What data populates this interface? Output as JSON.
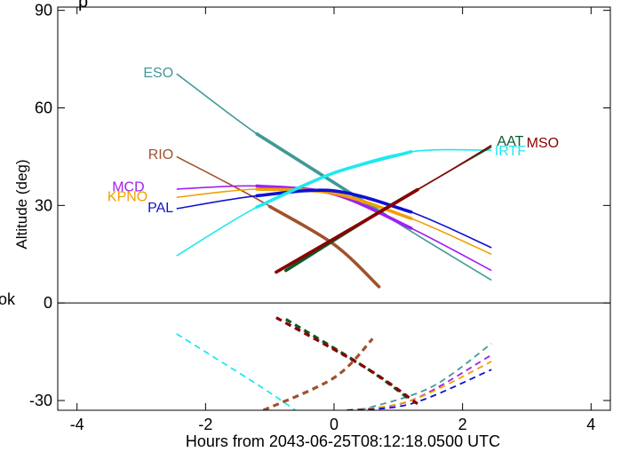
{
  "chart_data": {
    "type": "line",
    "title": "p",
    "xlabel": "Hours from 2043-06-25T08:12:18.0500 UTC",
    "ylabel": "Altitude (deg)",
    "xlim": [
      -4.3,
      4.3
    ],
    "ylim": [
      -33,
      91
    ],
    "x_ticks": [
      -4,
      -2,
      0,
      2,
      4
    ],
    "y_ticks": [
      -30,
      0,
      30,
      60,
      90
    ],
    "x_tick_labels": [
      "-4",
      "-2",
      "0",
      "2",
      "4"
    ],
    "y_tick_labels": [
      "-30",
      "0",
      "30",
      "60",
      "90"
    ],
    "side_text": "ok",
    "series": [
      {
        "name": "ESO",
        "color": "#3f9a96",
        "points": [
          [
            -2.45,
            70.5
          ],
          [
            -1.2,
            52
          ],
          [
            0,
            37
          ],
          [
            1.2,
            22
          ],
          [
            2.45,
            7
          ]
        ],
        "thick": [
          -1.2,
          0.8
        ],
        "below": [
          [
            0.4,
            -33
          ],
          [
            1.5,
            -26
          ],
          [
            2.45,
            -12.5
          ]
        ]
      },
      {
        "name": "RIO",
        "color": "#a0522d",
        "points": [
          [
            -2.45,
            45
          ],
          [
            -1.2,
            32
          ],
          [
            0,
            18
          ],
          [
            0.7,
            5
          ]
        ],
        "thick": [
          -1.0,
          0.7
        ],
        "below": [
          [
            -1.1,
            -33
          ],
          [
            0,
            -23
          ],
          [
            0.6,
            -11
          ]
        ]
      },
      {
        "name": "MCD",
        "color": "#a020f0",
        "points": [
          [
            -2.45,
            35
          ],
          [
            -1.2,
            36
          ],
          [
            0,
            33.5
          ],
          [
            1.2,
            23
          ],
          [
            2.45,
            10
          ]
        ],
        "thick": [
          -1.2,
          1.2
        ],
        "below": [
          [
            0.2,
            -33
          ],
          [
            1.2,
            -30
          ],
          [
            2.45,
            -16
          ]
        ]
      },
      {
        "name": "KPNO",
        "color": "#f0a000",
        "points": [
          [
            -2.45,
            32.5
          ],
          [
            -1.2,
            35
          ],
          [
            0,
            33.7
          ],
          [
            1.2,
            26
          ],
          [
            2.45,
            15
          ]
        ],
        "thick": [
          -1.2,
          1.2
        ],
        "below": [
          [
            0.2,
            -33
          ],
          [
            1.2,
            -30
          ],
          [
            2.45,
            -18
          ]
        ]
      },
      {
        "name": "PAL",
        "color": "#1010d0",
        "points": [
          [
            -2.45,
            29
          ],
          [
            -1.2,
            33
          ],
          [
            0,
            34.5
          ],
          [
            1.2,
            28
          ],
          [
            2.45,
            17
          ]
        ],
        "thick": [
          -1.2,
          1.2
        ],
        "below": [
          [
            0.2,
            -33
          ],
          [
            1.2,
            -31
          ],
          [
            2.45,
            -20.5
          ]
        ]
      },
      {
        "name": "IRTF",
        "color": "#20e8f0",
        "points": [
          [
            -2.45,
            14.5
          ],
          [
            -1.2,
            29.5
          ],
          [
            0,
            40
          ],
          [
            1.2,
            46.5
          ],
          [
            2.45,
            47
          ]
        ],
        "thick": [
          -1.2,
          1.2
        ],
        "below": [
          [
            -2.45,
            -9.5
          ],
          [
            -1.2,
            -25
          ],
          [
            -0.6,
            -33
          ]
        ]
      },
      {
        "name": "AAT",
        "color": "#0a5a2a",
        "points": [
          [
            -0.75,
            10
          ],
          [
            0.5,
            25.5
          ],
          [
            1.7,
            39.5
          ],
          [
            2.45,
            48
          ]
        ],
        "thick": [
          -0.75,
          1.3
        ],
        "below": [
          [
            -0.75,
            -5
          ],
          [
            0.5,
            -20
          ],
          [
            1.2,
            -30
          ]
        ]
      },
      {
        "name": "MSO",
        "color": "#8b0000",
        "points": [
          [
            -0.9,
            9.5
          ],
          [
            0.5,
            25.5
          ],
          [
            1.7,
            39.5
          ],
          [
            2.45,
            48.5
          ]
        ],
        "thick": [
          -0.9,
          1.3
        ],
        "below": [
          [
            -0.9,
            -4.5
          ],
          [
            0.5,
            -20
          ],
          [
            1.3,
            -31
          ]
        ]
      }
    ],
    "labels": [
      {
        "text": "ESO",
        "x": -2.5,
        "y": 71
      },
      {
        "text": "RIO",
        "x": -2.5,
        "y": 46
      },
      {
        "text": "MCD",
        "x": -2.95,
        "y": 36
      },
      {
        "text": "KPNO",
        "x": -2.9,
        "y": 33
      },
      {
        "text": "PAL",
        "x": -2.5,
        "y": 29.5
      },
      {
        "text": "IRTF",
        "x": 2.5,
        "y": 47
      },
      {
        "text": "AAT",
        "x": 2.95,
        "y": 50
      },
      {
        "text": "MSO",
        "x": 3.5,
        "y": 49.5
      }
    ]
  }
}
